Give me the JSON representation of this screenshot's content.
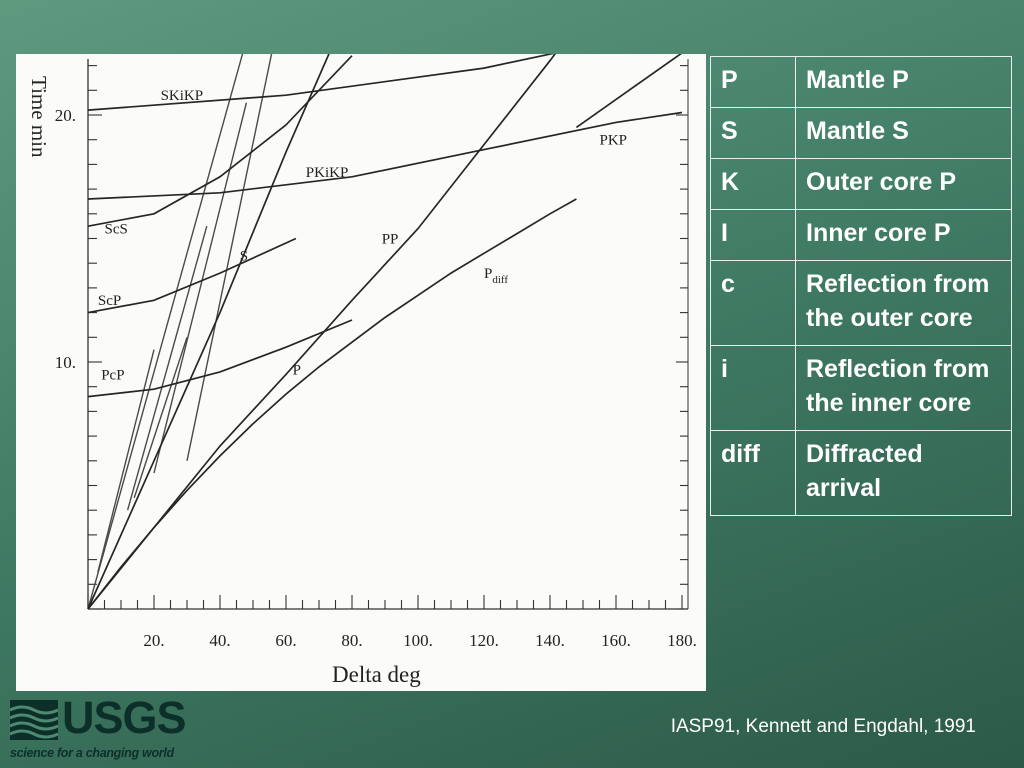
{
  "figure": {
    "y_axis_label": "Time  min",
    "x_axis_label": "Delta  deg",
    "y_ticks": [
      {
        "value": 10,
        "label": "10."
      },
      {
        "value": 20,
        "label": "20."
      }
    ],
    "x_ticks": [
      {
        "value": 20,
        "label": "20."
      },
      {
        "value": 40,
        "label": "40."
      },
      {
        "value": 60,
        "label": "60."
      },
      {
        "value": 80,
        "label": "80."
      },
      {
        "value": 100,
        "label": "100."
      },
      {
        "value": 120,
        "label": "120."
      },
      {
        "value": 140,
        "label": "140."
      },
      {
        "value": 160,
        "label": "160."
      },
      {
        "value": 180,
        "label": "180."
      }
    ],
    "phases": [
      {
        "name": "SKiKP",
        "sub": "",
        "points": [
          [
            0,
            20.2
          ],
          [
            60,
            20.8
          ],
          [
            120,
            21.9
          ],
          [
            180,
            23.6
          ]
        ],
        "label_at": [
          22,
          20.6
        ]
      },
      {
        "name": "PKiKP",
        "sub": "",
        "points": [
          [
            0,
            16.6
          ],
          [
            40,
            16.85
          ],
          [
            80,
            17.5
          ],
          [
            120,
            18.6
          ],
          [
            160,
            19.7
          ],
          [
            180,
            20.1
          ]
        ],
        "label_at": [
          66,
          17.5
        ]
      },
      {
        "name": "PKP",
        "sub": "",
        "points": [
          [
            148,
            19.5
          ],
          [
            165,
            21.1
          ],
          [
            182,
            22.7
          ]
        ],
        "label_at": [
          155,
          18.8
        ]
      },
      {
        "name": "ScS",
        "sub": "",
        "points": [
          [
            0,
            15.5
          ],
          [
            20,
            16.0
          ],
          [
            40,
            17.5
          ],
          [
            60,
            19.6
          ],
          [
            80,
            22.4
          ]
        ],
        "label_at": [
          5,
          15.2
        ]
      },
      {
        "name": "ScP",
        "sub": "",
        "points": [
          [
            0,
            12.0
          ],
          [
            20,
            12.5
          ],
          [
            40,
            13.6
          ],
          [
            63,
            15.0
          ]
        ],
        "label_at": [
          3,
          12.3
        ]
      },
      {
        "name": "PcP",
        "sub": "",
        "points": [
          [
            0,
            8.6
          ],
          [
            20,
            8.9
          ],
          [
            40,
            9.6
          ],
          [
            60,
            10.6
          ],
          [
            80,
            11.7
          ]
        ],
        "label_at": [
          4,
          9.3
        ]
      },
      {
        "name": "P",
        "sub": "",
        "points": [
          [
            0,
            0
          ],
          [
            10,
            1.7
          ],
          [
            20,
            3.3
          ],
          [
            30,
            4.8
          ],
          [
            40,
            6.2
          ],
          [
            50,
            7.5
          ],
          [
            60,
            8.7
          ],
          [
            70,
            9.8
          ],
          [
            80,
            10.8
          ],
          [
            90,
            11.8
          ],
          [
            100,
            12.7
          ],
          [
            110,
            13.6
          ],
          [
            120,
            14.4
          ],
          [
            130,
            15.2
          ],
          [
            140,
            16.0
          ],
          [
            148,
            16.6
          ]
        ],
        "label_at": [
          62,
          9.5
        ]
      },
      {
        "name": "PP",
        "sub": "",
        "points": [
          [
            0,
            0
          ],
          [
            20,
            3.3
          ],
          [
            40,
            6.6
          ],
          [
            60,
            9.5
          ],
          [
            80,
            12.5
          ],
          [
            100,
            15.4
          ],
          [
            120,
            18.8
          ],
          [
            140,
            22.2
          ],
          [
            150,
            24.0
          ]
        ],
        "label_at": [
          89,
          14.8
        ]
      },
      {
        "name": "P",
        "sub": "diff",
        "points": [],
        "label_at": [
          120,
          13.4
        ]
      },
      {
        "name": "S",
        "sub": "",
        "points": [
          [
            0,
            0
          ],
          [
            20,
            6.0
          ],
          [
            40,
            12.0
          ],
          [
            60,
            18.5
          ],
          [
            78,
            24.0
          ]
        ],
        "label_at": [
          46,
          14.1
        ]
      }
    ],
    "extra_branches": [
      [
        [
          3,
          1.5
        ],
        [
          20,
          10.5
        ]
      ],
      [
        [
          12,
          4.0
        ],
        [
          36,
          15.5
        ]
      ],
      [
        [
          20,
          5.5
        ],
        [
          48,
          20.5
        ]
      ],
      [
        [
          30,
          6.0
        ],
        [
          58,
          24.0
        ]
      ],
      [
        [
          0,
          0
        ],
        [
          50,
          24.0
        ]
      ],
      [
        [
          14,
          4.5
        ],
        [
          30,
          11.0
        ]
      ]
    ]
  },
  "legend": [
    {
      "symbol": "P",
      "meaning": "Mantle P"
    },
    {
      "symbol": "S",
      "meaning": "Mantle S"
    },
    {
      "symbol": "K",
      "meaning": "Outer core P"
    },
    {
      "symbol": "I",
      "meaning": "Inner core P"
    },
    {
      "symbol": "c",
      "meaning": "Reflection from the outer core"
    },
    {
      "symbol": "i",
      "meaning": "Reflection from the inner core"
    },
    {
      "symbol": "diff",
      "meaning": "Diffracted arrival"
    }
  ],
  "logo": {
    "word": "USGS",
    "tagline": "science for a changing world"
  },
  "caption": "IASP91, Kennett and Engdahl, 1991"
}
